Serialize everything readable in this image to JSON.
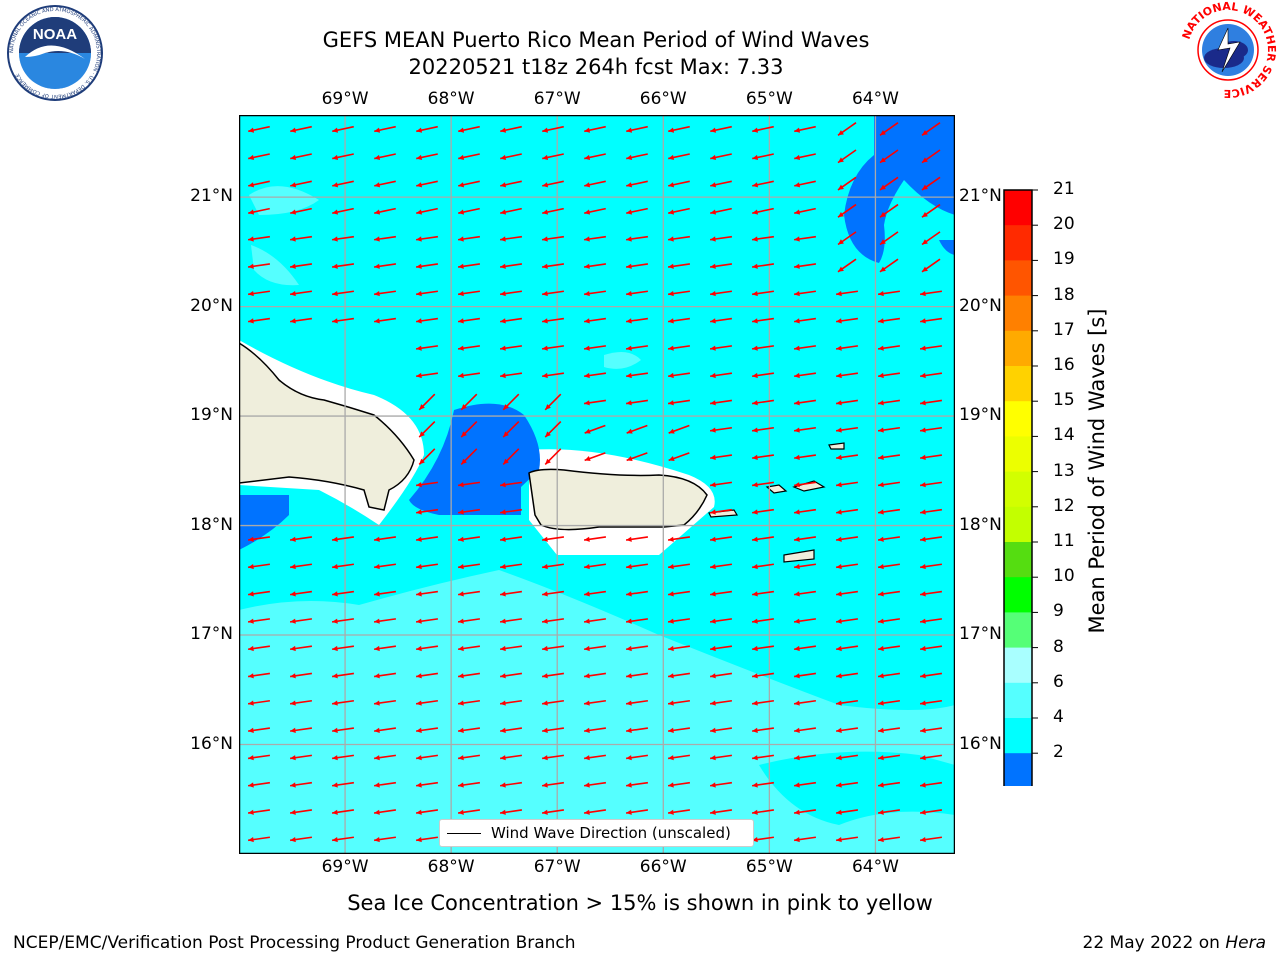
{
  "title": {
    "line1": "GEFS MEAN Puerto Rico Mean Period of Wind Waves",
    "line2": "20220521 t18z 264h fcst   Max: 7.33"
  },
  "map": {
    "lon_ticks": [
      "69°W",
      "68°W",
      "67°W",
      "66°W",
      "65°W",
      "64°W"
    ],
    "lat_ticks": [
      "21°N",
      "20°N",
      "19°N",
      "18°N",
      "17°N",
      "16°N"
    ],
    "lon_range": [
      -70.0,
      -63.25
    ],
    "lat_range": [
      15.0,
      21.75
    ],
    "gridlines": true,
    "arrow_color": "#ff0000",
    "land_color": "#efeedc",
    "legend_label": "Wind Wave Direction (unscaled)"
  },
  "colorbar": {
    "label": "Mean Period of Wind Waves [s]",
    "ticks": [
      "21",
      "20",
      "19",
      "18",
      "17",
      "16",
      "15",
      "14",
      "13",
      "12",
      "11",
      "10",
      "9",
      "8",
      "6",
      "4",
      "2"
    ],
    "colors": [
      "#ff0000",
      "#ff2a00",
      "#ff5500",
      "#ff8000",
      "#ffaa00",
      "#ffd200",
      "#ffff00",
      "#ecff00",
      "#d2ff00",
      "#c3ff00",
      "#55dd11",
      "#00ff00",
      "#55ff77",
      "#a9ffff",
      "#55ffff",
      "#00ffff",
      "#0073ff"
    ],
    "extend_min_color": "#0000ff"
  },
  "logos": {
    "left": "NOAA",
    "left_ring": "NATIONAL OCEANIC AND ATMOSPHERIC ADMINISTRATION · U.S. DEPARTMENT OF COMMERCE",
    "right": "NATIONAL WEATHER SERVICE"
  },
  "caption": "Sea Ice Concentration > 15% is shown in pink to yellow",
  "footer": {
    "left": "NCEP/EMC/Verification Post Processing Product Generation Branch",
    "right_prefix": "22 May 2022 on ",
    "right_machine": "Hera"
  }
}
